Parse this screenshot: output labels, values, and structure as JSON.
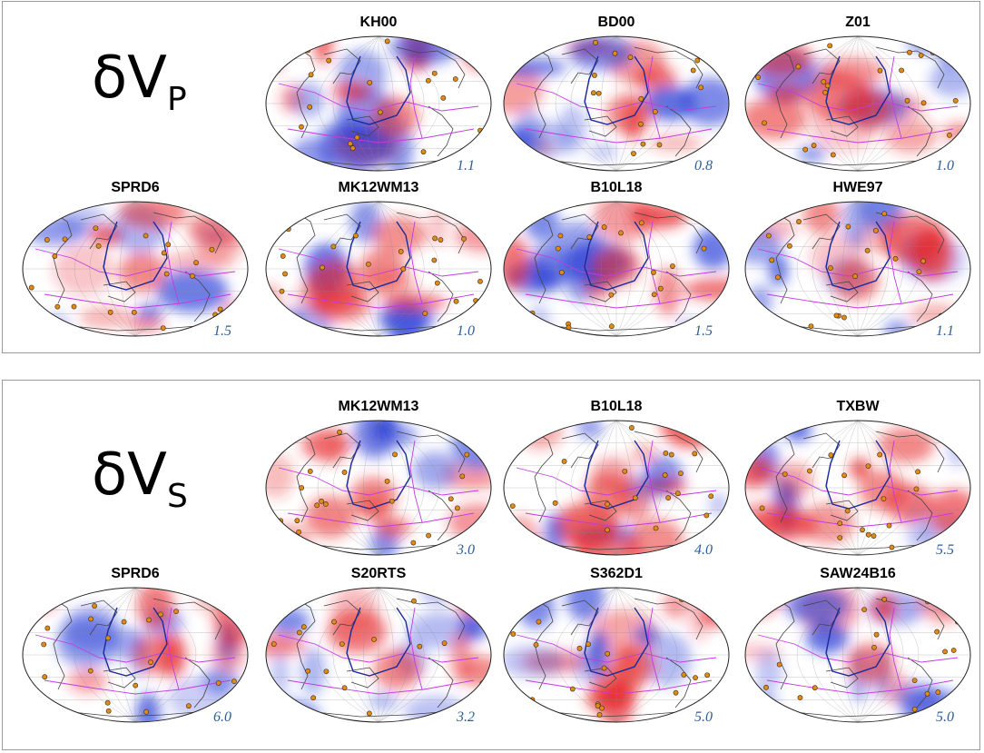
{
  "panels": [
    {
      "label_symbol": "δV",
      "label_sub": "P",
      "maps": [
        {
          "title": "KH00",
          "scale": "1.1"
        },
        {
          "title": "BD00",
          "scale": "0.8"
        },
        {
          "title": "Z01",
          "scale": "1.0"
        },
        {
          "title": "SPRD6",
          "scale": "1.5"
        },
        {
          "title": "MK12WM13",
          "scale": "1.0"
        },
        {
          "title": "B10L18",
          "scale": "1.5"
        },
        {
          "title": "HWE97",
          "scale": "1.1"
        }
      ]
    },
    {
      "label_symbol": "δV",
      "label_sub": "S",
      "maps": [
        {
          "title": "MK12WM13",
          "scale": "3.0"
        },
        {
          "title": "B10L18",
          "scale": "4.0"
        },
        {
          "title": "TXBW",
          "scale": "5.5"
        },
        {
          "title": "SPRD6",
          "scale": "6.0"
        },
        {
          "title": "S20RTS",
          "scale": "3.2"
        },
        {
          "title": "S362D1",
          "scale": "5.0"
        },
        {
          "title": "SAW24B16",
          "scale": "5.0"
        }
      ]
    }
  ],
  "colors": {
    "fast": "#2a3fd8",
    "slow": "#e8262a",
    "plate_boundary": "#c23be0",
    "slab": "#1a2a9a",
    "coast": "#444444",
    "hotspot": "#e08a18",
    "scale_text": "#2a5d9a"
  }
}
